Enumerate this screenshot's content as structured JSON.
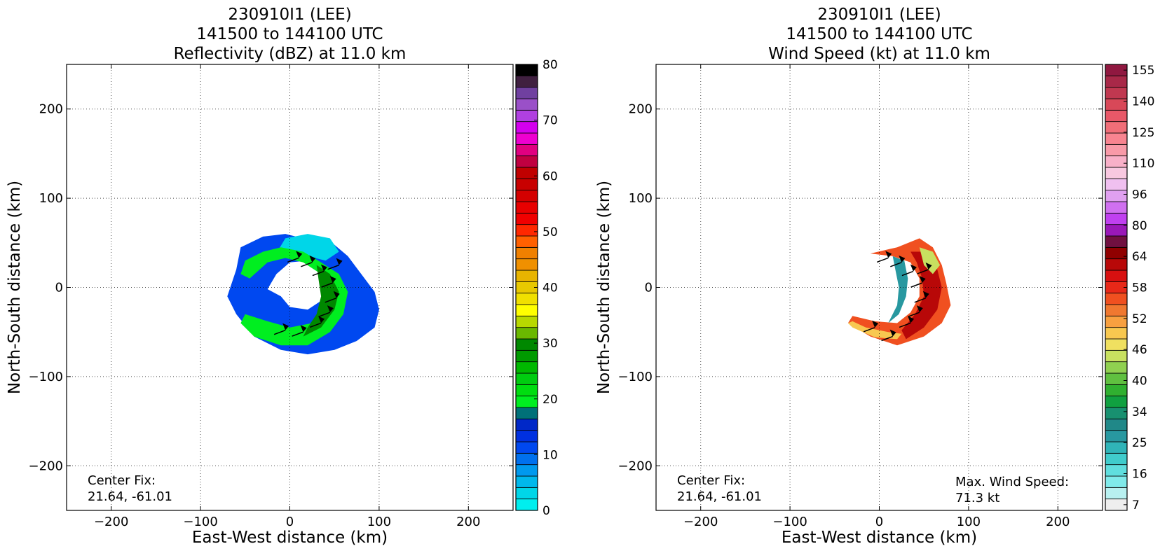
{
  "chart_data": [
    {
      "type": "heatmap",
      "title_lines": [
        "230910I1 (LEE)",
        "141500 to 144100 UTC",
        "Reflectivity (dBZ) at 11.0 km"
      ],
      "xlabel": "East-West distance (km)",
      "ylabel": "North-South distance (km)",
      "xlim": [
        -250,
        250
      ],
      "ylim": [
        -250,
        250
      ],
      "xticks": [
        -200,
        -100,
        0,
        100,
        200
      ],
      "yticks": [
        -200,
        -100,
        0,
        100,
        200
      ],
      "xtick_labels": [
        "−200",
        "−100",
        "0",
        "100",
        "200"
      ],
      "ytick_labels": [
        "−200",
        "−100",
        "0",
        "100",
        "200"
      ],
      "grid": true,
      "notes": {
        "center_fix_label": "Center Fix:",
        "center_fix_value": "21.64, -61.01"
      },
      "colorbar": {
        "label_values": [
          0,
          10,
          20,
          30,
          40,
          50,
          60,
          70,
          80
        ],
        "tick_labels": [
          "0",
          "10",
          "20",
          "30",
          "40",
          "50",
          "60",
          "70",
          "80"
        ],
        "colors": [
          "#00eeee",
          "#00d6e8",
          "#00b8ec",
          "#0099ee",
          "#0070ee",
          "#0048f0",
          "#0030e0",
          "#0028c8",
          "#007078",
          "#00ee20",
          "#00dd10",
          "#00cc10",
          "#00b800",
          "#009a00",
          "#008800",
          "#6ab800",
          "#b8d800",
          "#ffff00",
          "#f0e000",
          "#e8c800",
          "#e8b400",
          "#f09000",
          "#f08000",
          "#ff6000",
          "#ff2800",
          "#f00000",
          "#e80000",
          "#d40000",
          "#c80000",
          "#c00000",
          "#c00040",
          "#e00080",
          "#ee00d0",
          "#d400ee",
          "#b040e0",
          "#9a50c8",
          "#7040a0",
          "#402040",
          "#000000"
        ]
      },
      "overlay": {
        "kind": "filled reflectivity field with wind barbs",
        "shape": "crescent ring around storm center"
      }
    },
    {
      "type": "heatmap",
      "title_lines": [
        "230910I1 (LEE)",
        "141500 to 144100 UTC",
        "Wind Speed (kt) at 11.0 km"
      ],
      "xlabel": "East-West distance (km)",
      "ylabel": "North-South distance (km)",
      "xlim": [
        -250,
        250
      ],
      "ylim": [
        -250,
        250
      ],
      "xticks": [
        -200,
        -100,
        0,
        100,
        200
      ],
      "yticks": [
        -200,
        -100,
        0,
        100,
        200
      ],
      "xtick_labels": [
        "−200",
        "−100",
        "0",
        "100",
        "200"
      ],
      "ytick_labels": [
        "−200",
        "−100",
        "0",
        "100",
        "200"
      ],
      "grid": true,
      "notes": {
        "center_fix_label": "Center Fix:",
        "center_fix_value": "21.64, -61.01",
        "max_wind_label": "Max. Wind Speed:",
        "max_wind_value": "71.3 kt"
      },
      "colorbar": {
        "tick_labels": [
          "7",
          "16",
          "25",
          "34",
          "40",
          "46",
          "52",
          "58",
          "64",
          "80",
          "96",
          "110",
          "125",
          "140",
          "155"
        ],
        "colors": [
          "#eeeeee",
          "#b8f0f0",
          "#80eaea",
          "#60dede",
          "#40cccc",
          "#30b4b8",
          "#2898a0",
          "#208888",
          "#189070",
          "#10a040",
          "#30b030",
          "#60c040",
          "#90d050",
          "#c8e060",
          "#f0e060",
          "#f8c850",
          "#f8a040",
          "#f07830",
          "#f05020",
          "#e82818",
          "#d81010",
          "#b80808",
          "#900000",
          "#701040",
          "#9a18b8",
          "#c040f0",
          "#d070f0",
          "#e0a0f0",
          "#f0c0f0",
          "#f8c8e0",
          "#f8b0c8",
          "#f89aa8",
          "#f88490",
          "#f06e78",
          "#e85868",
          "#d84858",
          "#c03850",
          "#a82848",
          "#901840"
        ]
      },
      "overlay": {
        "kind": "filled wind speed field with wind barbs",
        "shape": "crescent ring around storm center"
      }
    }
  ]
}
